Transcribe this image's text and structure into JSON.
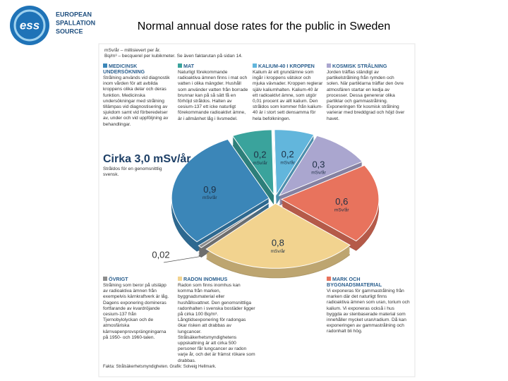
{
  "header": {
    "logo_mark": "ess",
    "org_lines": [
      "EUROPEAN",
      "SPALLATION",
      "SOURCE"
    ],
    "title": "Normal annual dose rates for the public in Sweden"
  },
  "infographic": {
    "notes": [
      "mSv/år – millisievert per år.",
      "Bq/m³ – becquerel per kubikmeter. Se även faktarutan på sidan 14."
    ],
    "total_label": "Cirka 3,0 mSv/år",
    "total_caption": "Stråldos för en genomsnittlig svensk.",
    "credit": "Fakta: Strålsäkerhetsmyndigheten. Grafik: Solveig Hellmark."
  },
  "chart_data": {
    "type": "pie",
    "categories": [
      "MEDICINSK UNDERSÖKNING",
      "MAT",
      "KALIUM-40 I KROPPEN",
      "KOSMISK STRÅLNING",
      "MARK OCH BYGGNADSMATERIAL",
      "RADON INOMHUS",
      "ÖVRIGT"
    ],
    "values": [
      0.9,
      0.2,
      0.2,
      0.3,
      0.6,
      0.8,
      0.02
    ],
    "value_labels": [
      "0,9",
      "0,2",
      "0,2",
      "0,3",
      "0,6",
      "0,8",
      "0,02"
    ],
    "unit_label": "mSv/år",
    "colors": [
      "#3b86b8",
      "#3aa39c",
      "#62b6dc",
      "#aaa6cf",
      "#e8735d",
      "#f2d38f",
      "#8d8d8d"
    ],
    "descriptions": [
      "Strålning används vid diagnostik inom vården för att avbilda kroppens olika delar och deras funktion. Medicinska undersökningar med strålning tillämpas vid diagnostisering av sjukdom samt vid förberedelser av, under och vid uppföljning av behandlingar.",
      "Naturligt förekommande radioaktiva ämnen finns i mat och vatten i olika mängder. Hushåll som använder vatten från borrade brunnar kan på så sätt få en förhöjd stråldos. Halten av cesium-137 ett icke naturligt förekommande radioaktivt ämne, är i allmänhet låg i livsmedel.",
      "Kalium är ett grundämne som ingår i kroppens vätskor och mjuka vävnader. Kroppen reglerar själv kaliumhalten. Kalium-40 är ett radioaktivt ämne, som utgör 0,01 procent av allt kalium. Den stråldos som kommer från kalium-40 är i stort sett densamma för hela befolkningen.",
      "Jorden träffas ständigt av partikelstrålning från rymden och solen. När partiklarna träffar den övre atmosfären startar en kedja av processer. Dessa genererar olika partiklar och gammastrålning. Exponeringen för kosmisk strålning varierar med breddgrad och höjd över havet.",
      "Vi exponeras för gammastrålning från marken där det naturligt finns radioaktiva ämnen som uran, torium och kalium. Vi exponeras också i hus byggda av stenbaserade material som innehåller mycket uran/radium. Då kan exponeringen av gammastrålning och radonhalt bli hög.",
      "Radon som finns inomhus kan komma från marken, byggnadsmaterial eller hushållsvattnet. Den genomsnittliga radonhalten i svenska bostäder ligger på cirka 100 Bq/m³. Långtidsexponering för radongas ökar risken att drabbas av lungcancer. Strålsäkerhetsmyndighetens uppskattning är att cirka 500 personer får lungcancer av radon varje år, och det är främst rökare som drabbas.",
      "Strålning som beror på utsläpp av radioaktiva ämnen från exempelvis kärnkraftverk är låg. Dagens exponering domineras fortfarande av kvardröjande cesium-137 från Tjernobylolyckan och de atmosfäriska kärnvapenprovsprängningarna på 1950- och 1960-talen."
    ]
  }
}
